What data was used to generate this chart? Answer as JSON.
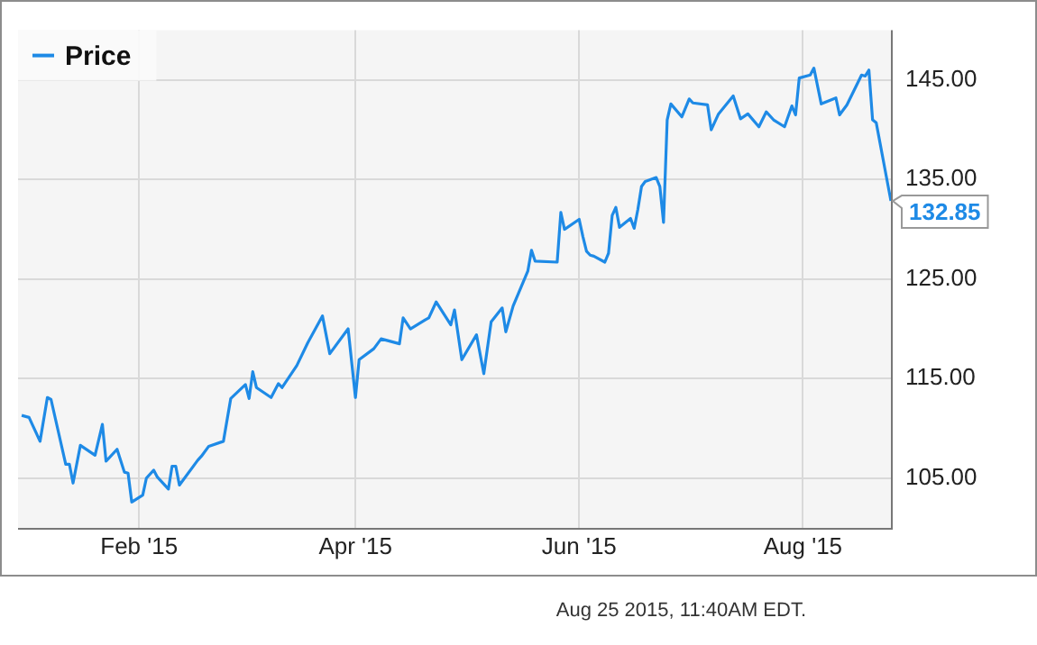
{
  "chart_data": {
    "type": "line",
    "x": [
      "2014-12-31",
      "2015-01-02",
      "2015-01-05",
      "2015-01-07",
      "2015-01-08",
      "2015-01-12",
      "2015-01-13",
      "2015-01-14",
      "2015-01-16",
      "2015-01-20",
      "2015-01-22",
      "2015-01-23",
      "2015-01-26",
      "2015-01-28",
      "2015-01-29",
      "2015-01-30",
      "2015-02-02",
      "2015-02-03",
      "2015-02-05",
      "2015-02-06",
      "2015-02-09",
      "2015-02-10",
      "2015-02-11",
      "2015-02-12",
      "2015-02-17",
      "2015-02-18",
      "2015-02-20",
      "2015-02-24",
      "2015-02-26",
      "2015-03-02",
      "2015-03-03",
      "2015-03-04",
      "2015-03-05",
      "2015-03-09",
      "2015-03-11",
      "2015-03-12",
      "2015-03-16",
      "2015-03-19",
      "2015-03-23",
      "2015-03-25",
      "2015-03-30",
      "2015-04-01",
      "2015-04-02",
      "2015-04-06",
      "2015-04-08",
      "2015-04-13",
      "2015-04-14",
      "2015-04-16",
      "2015-04-20",
      "2015-04-21",
      "2015-04-23",
      "2015-04-27",
      "2015-04-28",
      "2015-04-30",
      "2015-05-04",
      "2015-05-06",
      "2015-05-08",
      "2015-05-11",
      "2015-05-12",
      "2015-05-14",
      "2015-05-18",
      "2015-05-19",
      "2015-05-20",
      "2015-05-26",
      "2015-05-27",
      "2015-05-28",
      "2015-06-01",
      "2015-06-02",
      "2015-06-03",
      "2015-06-04",
      "2015-06-05",
      "2015-06-08",
      "2015-06-09",
      "2015-06-10",
      "2015-06-11",
      "2015-06-12",
      "2015-06-15",
      "2015-06-16",
      "2015-06-17",
      "2015-06-18",
      "2015-06-19",
      "2015-06-22",
      "2015-06-23",
      "2015-06-24",
      "2015-06-25",
      "2015-06-26",
      "2015-06-29",
      "2015-07-01",
      "2015-07-02",
      "2015-07-06",
      "2015-07-07",
      "2015-07-09",
      "2015-07-13",
      "2015-07-15",
      "2015-07-17",
      "2015-07-20",
      "2015-07-22",
      "2015-07-24",
      "2015-07-27",
      "2015-07-29",
      "2015-07-30",
      "2015-07-31",
      "2015-08-03",
      "2015-08-04",
      "2015-08-06",
      "2015-08-10",
      "2015-08-11",
      "2015-08-13",
      "2015-08-17",
      "2015-08-18",
      "2015-08-19",
      "2015-08-20",
      "2015-08-21",
      "2015-08-25"
    ],
    "series": [
      {
        "name": "Price",
        "color": "#1e8ae6",
        "values": [
          111.3,
          111.1,
          108.7,
          113.1,
          112.9,
          106.4,
          106.4,
          104.5,
          108.3,
          107.3,
          110.4,
          106.7,
          107.9,
          105.6,
          105.5,
          102.6,
          103.3,
          105.0,
          105.8,
          105.1,
          103.9,
          106.2,
          106.2,
          104.3,
          106.8,
          107.2,
          108.2,
          108.7,
          113.0,
          114.4,
          113.0,
          115.7,
          114.1,
          113.1,
          114.5,
          114.1,
          116.3,
          118.6,
          121.3,
          117.5,
          120.0,
          113.1,
          116.9,
          118.0,
          119.0,
          118.5,
          121.1,
          120.0,
          120.9,
          121.1,
          122.7,
          120.4,
          121.9,
          116.9,
          119.4,
          115.5,
          120.7,
          122.1,
          119.7,
          122.3,
          125.8,
          127.9,
          126.8,
          126.7,
          131.7,
          130.0,
          131.0,
          129.3,
          127.8,
          127.4,
          127.3,
          126.7,
          127.6,
          131.4,
          132.2,
          130.2,
          131.1,
          130.1,
          132.0,
          134.3,
          134.8,
          135.2,
          134.3,
          130.7,
          141.0,
          142.6,
          141.3,
          143.1,
          142.7,
          142.5,
          140.0,
          141.6,
          143.4,
          141.1,
          141.6,
          140.3,
          141.8,
          141.0,
          140.3,
          142.4,
          141.5,
          145.2,
          145.5,
          146.2,
          142.6,
          143.2,
          141.5,
          142.5,
          145.5,
          145.4,
          146.0,
          141.0,
          140.7,
          132.85
        ],
        "value_labels": [
          null,
          null,
          null,
          null,
          null,
          null,
          null,
          null,
          null,
          null,
          null,
          null,
          null,
          null,
          null,
          null,
          null,
          null,
          null,
          null,
          null,
          null,
          null,
          null,
          null,
          null,
          null,
          null,
          null,
          null,
          null,
          null,
          null,
          null,
          null,
          null,
          null,
          null,
          null,
          null,
          null,
          null,
          null,
          null,
          null,
          null,
          null,
          null,
          null,
          null,
          null,
          null,
          null,
          null,
          null,
          null,
          null,
          null,
          null,
          null,
          null,
          null,
          null,
          null,
          null,
          null,
          null,
          null,
          null,
          null,
          null,
          null,
          null,
          null,
          null,
          null,
          null,
          null,
          null,
          null,
          null,
          null,
          null,
          null,
          null,
          null,
          null,
          null,
          null,
          null,
          null,
          null,
          null,
          null,
          null,
          null,
          null,
          null,
          null,
          null,
          null,
          null,
          null,
          null,
          null,
          null,
          null,
          null,
          null,
          null,
          null,
          null,
          null,
          "132.85"
        ]
      }
    ],
    "xlim": [
      "2014-12-30",
      "2015-08-25"
    ],
    "xticks": [
      {
        "value": "2015-02-01",
        "label": "Feb '15"
      },
      {
        "value": "2015-04-01",
        "label": "Apr '15"
      },
      {
        "value": "2015-06-01",
        "label": "Jun '15"
      },
      {
        "value": "2015-08-01",
        "label": "Aug '15"
      }
    ],
    "ylim": [
      100,
      150
    ],
    "yticks": [
      {
        "value": 105,
        "label": "105.00"
      },
      {
        "value": 115,
        "label": "115.00"
      },
      {
        "value": 125,
        "label": "125.00"
      },
      {
        "value": 135,
        "label": "135.00"
      },
      {
        "value": 145,
        "label": "145.00"
      }
    ],
    "grid": true,
    "legend": "top left",
    "annotations": [
      "Aug 25 2015, 11:40AM EDT."
    ]
  }
}
